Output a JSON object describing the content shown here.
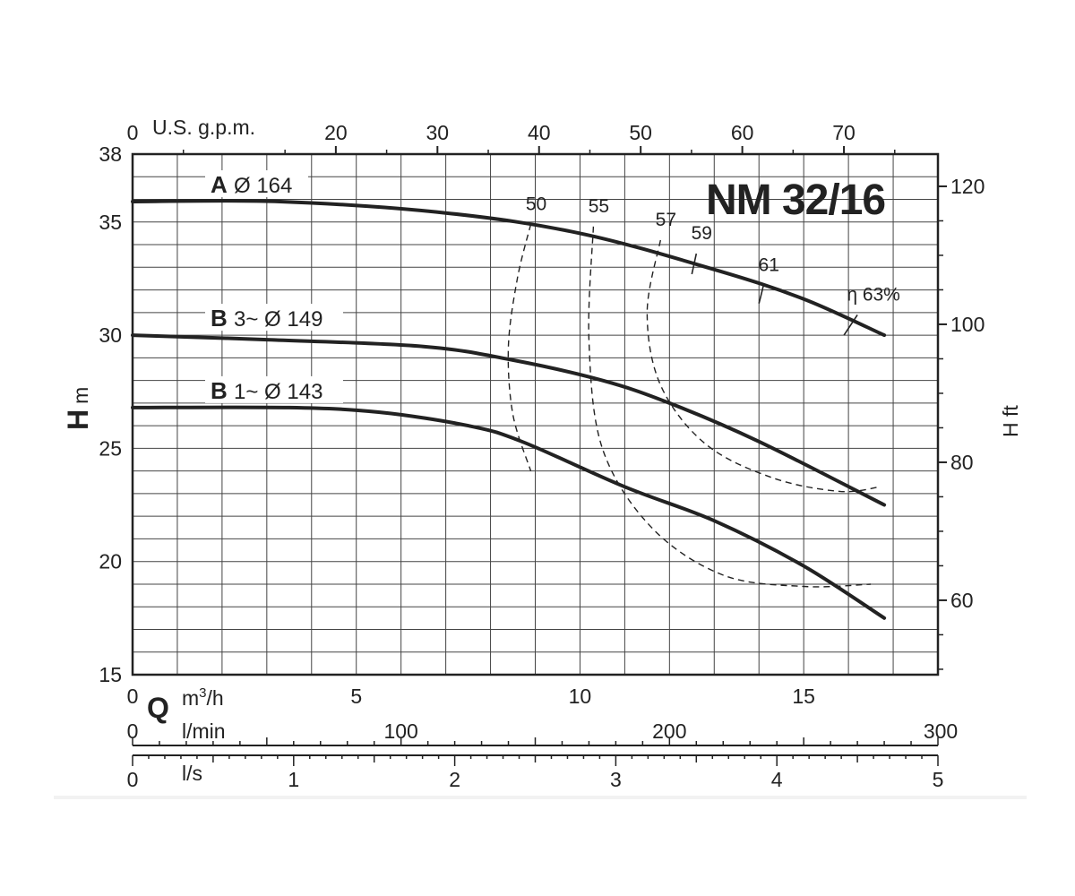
{
  "chart_data": {
    "type": "line",
    "title": "NM 32/16",
    "x_unit_primary": "m³/h",
    "x_unit_primary_superscript_base": "m",
    "x_unit_primary_superscript_exp": "3",
    "x_unit_primary_suffix": "/h",
    "x_symbol": "Q",
    "y_symbol": "H",
    "y_unit": "m",
    "y2_label": "H ft",
    "top_axis_label": "U.S. g.p.m.",
    "xlim": [
      0,
      18
    ],
    "ylim": [
      15,
      38
    ],
    "y_ticks": [
      "15",
      "20",
      "25",
      "30",
      "35",
      "38"
    ],
    "x_ticks_m3h": [
      "0",
      "5",
      "10",
      "15"
    ],
    "x_ticks_usgpm": [
      "0",
      "20",
      "30",
      "40",
      "50",
      "60",
      "70"
    ],
    "y2_ticks_ft": [
      "60",
      "80",
      "100",
      "120"
    ],
    "lmin_axis": {
      "label": "l/min",
      "ticks": [
        "0",
        "100",
        "200",
        "300"
      ]
    },
    "ls_axis": {
      "label": "l/s",
      "ticks": [
        "0",
        "1",
        "2",
        "3",
        "4",
        "5"
      ]
    },
    "grid": true,
    "series": [
      {
        "letter": "A",
        "name": "Ø 164",
        "x": [
          0,
          3.3,
          7,
          10,
          13,
          15,
          16.8
        ],
        "y": [
          35.9,
          35.9,
          35.4,
          34.5,
          32.9,
          31.6,
          30.0
        ]
      },
      {
        "letter": "B",
        "name": "3~ Ø 149",
        "x": [
          0,
          3,
          6.5,
          8.5,
          10.5,
          12,
          14,
          16.8
        ],
        "y": [
          30.0,
          29.8,
          29.5,
          28.9,
          28.0,
          27.0,
          25.3,
          22.5
        ]
      },
      {
        "letter": "B",
        "name": "1~ Ø 143",
        "x": [
          0,
          3.5,
          5.5,
          7.5,
          8.7,
          11,
          13,
          15,
          16.8
        ],
        "y": [
          26.8,
          26.8,
          26.6,
          26.0,
          25.3,
          23.3,
          21.8,
          19.8,
          17.5
        ]
      }
    ],
    "efficiency_curves": [
      {
        "label": "50",
        "x": [
          8.9,
          8.6,
          8.4,
          8.5,
          8.9
        ],
        "y": [
          34.9,
          32.5,
          29.5,
          26.5,
          24.0
        ]
      },
      {
        "label": "55",
        "x": [
          10.3,
          10.2,
          10.5,
          11.6,
          13.2,
          15,
          16.5
        ],
        "y": [
          34.8,
          29.8,
          25.0,
          21.5,
          19.4,
          18.9,
          19.0
        ]
      },
      {
        "label": "57",
        "x": [
          11.8,
          11.5,
          11.8,
          12.8,
          14.3,
          15.8,
          16.7
        ],
        "y": [
          34.2,
          31.0,
          27.8,
          25.2,
          23.7,
          23.1,
          23.3
        ]
      },
      {
        "label": "59",
        "x": [
          12.6,
          12.5
        ],
        "y": [
          33.6,
          32.7
        ]
      },
      {
        "label": "61",
        "x": [
          14.1,
          14.0
        ],
        "y": [
          32.2,
          31.4
        ]
      },
      {
        "label": "η 63%",
        "x": [
          16.2,
          15.9
        ],
        "y": [
          30.9,
          30.0
        ]
      }
    ]
  }
}
